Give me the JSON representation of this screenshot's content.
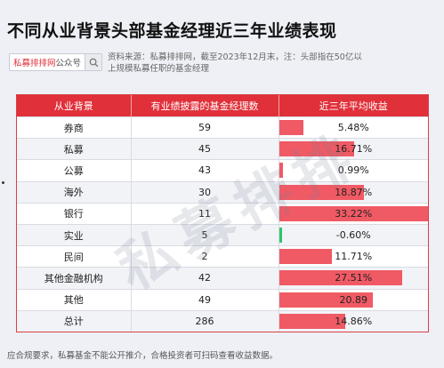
{
  "title": "不同从业背景头部基金经理近三年业绩表现",
  "brand": {
    "red": "私募排排网",
    "gray": "公众号"
  },
  "source_line1": "资料来源：私募排排网，截至2023年12月末，注：头部指在50亿以",
  "source_line2": "上规模私募任职的基金经理",
  "watermark": "私募排排",
  "columns": [
    "从业背景",
    "有业绩披露的基金经理数",
    "近三年平均收益"
  ],
  "rows": [
    {
      "background": "券商",
      "count": "59",
      "return_label": "5.48%",
      "return": 5.48
    },
    {
      "background": "私募",
      "count": "45",
      "return_label": "16.71%",
      "return": 16.71
    },
    {
      "background": "公募",
      "count": "43",
      "return_label": "0.99%",
      "return": 0.99
    },
    {
      "background": "海外",
      "count": "30",
      "return_label": "18.87%",
      "return": 18.87
    },
    {
      "background": "银行",
      "count": "11",
      "return_label": "33.22%",
      "return": 33.22
    },
    {
      "background": "实业",
      "count": "5",
      "return_label": "-0.60%",
      "return": -0.6
    },
    {
      "background": "民间",
      "count": "2",
      "return_label": "11.71%",
      "return": 11.71
    },
    {
      "background": "其他金融机构",
      "count": "42",
      "return_label": "27.51%",
      "return": 27.51
    },
    {
      "background": "其他",
      "count": "49",
      "return_label": "20.89",
      "return": 20.89
    },
    {
      "background": "总计",
      "count": "286",
      "return_label": "14.86%",
      "return": 14.86
    }
  ],
  "bar_max": 33.22,
  "colors": {
    "header": "#e0303a",
    "bar_positive": "#f05a64",
    "bar_negative": "#2fc46a"
  },
  "footer": "应合规要求，私募基金不能公开推介，合格投资者可扫码查看收益数据。"
}
